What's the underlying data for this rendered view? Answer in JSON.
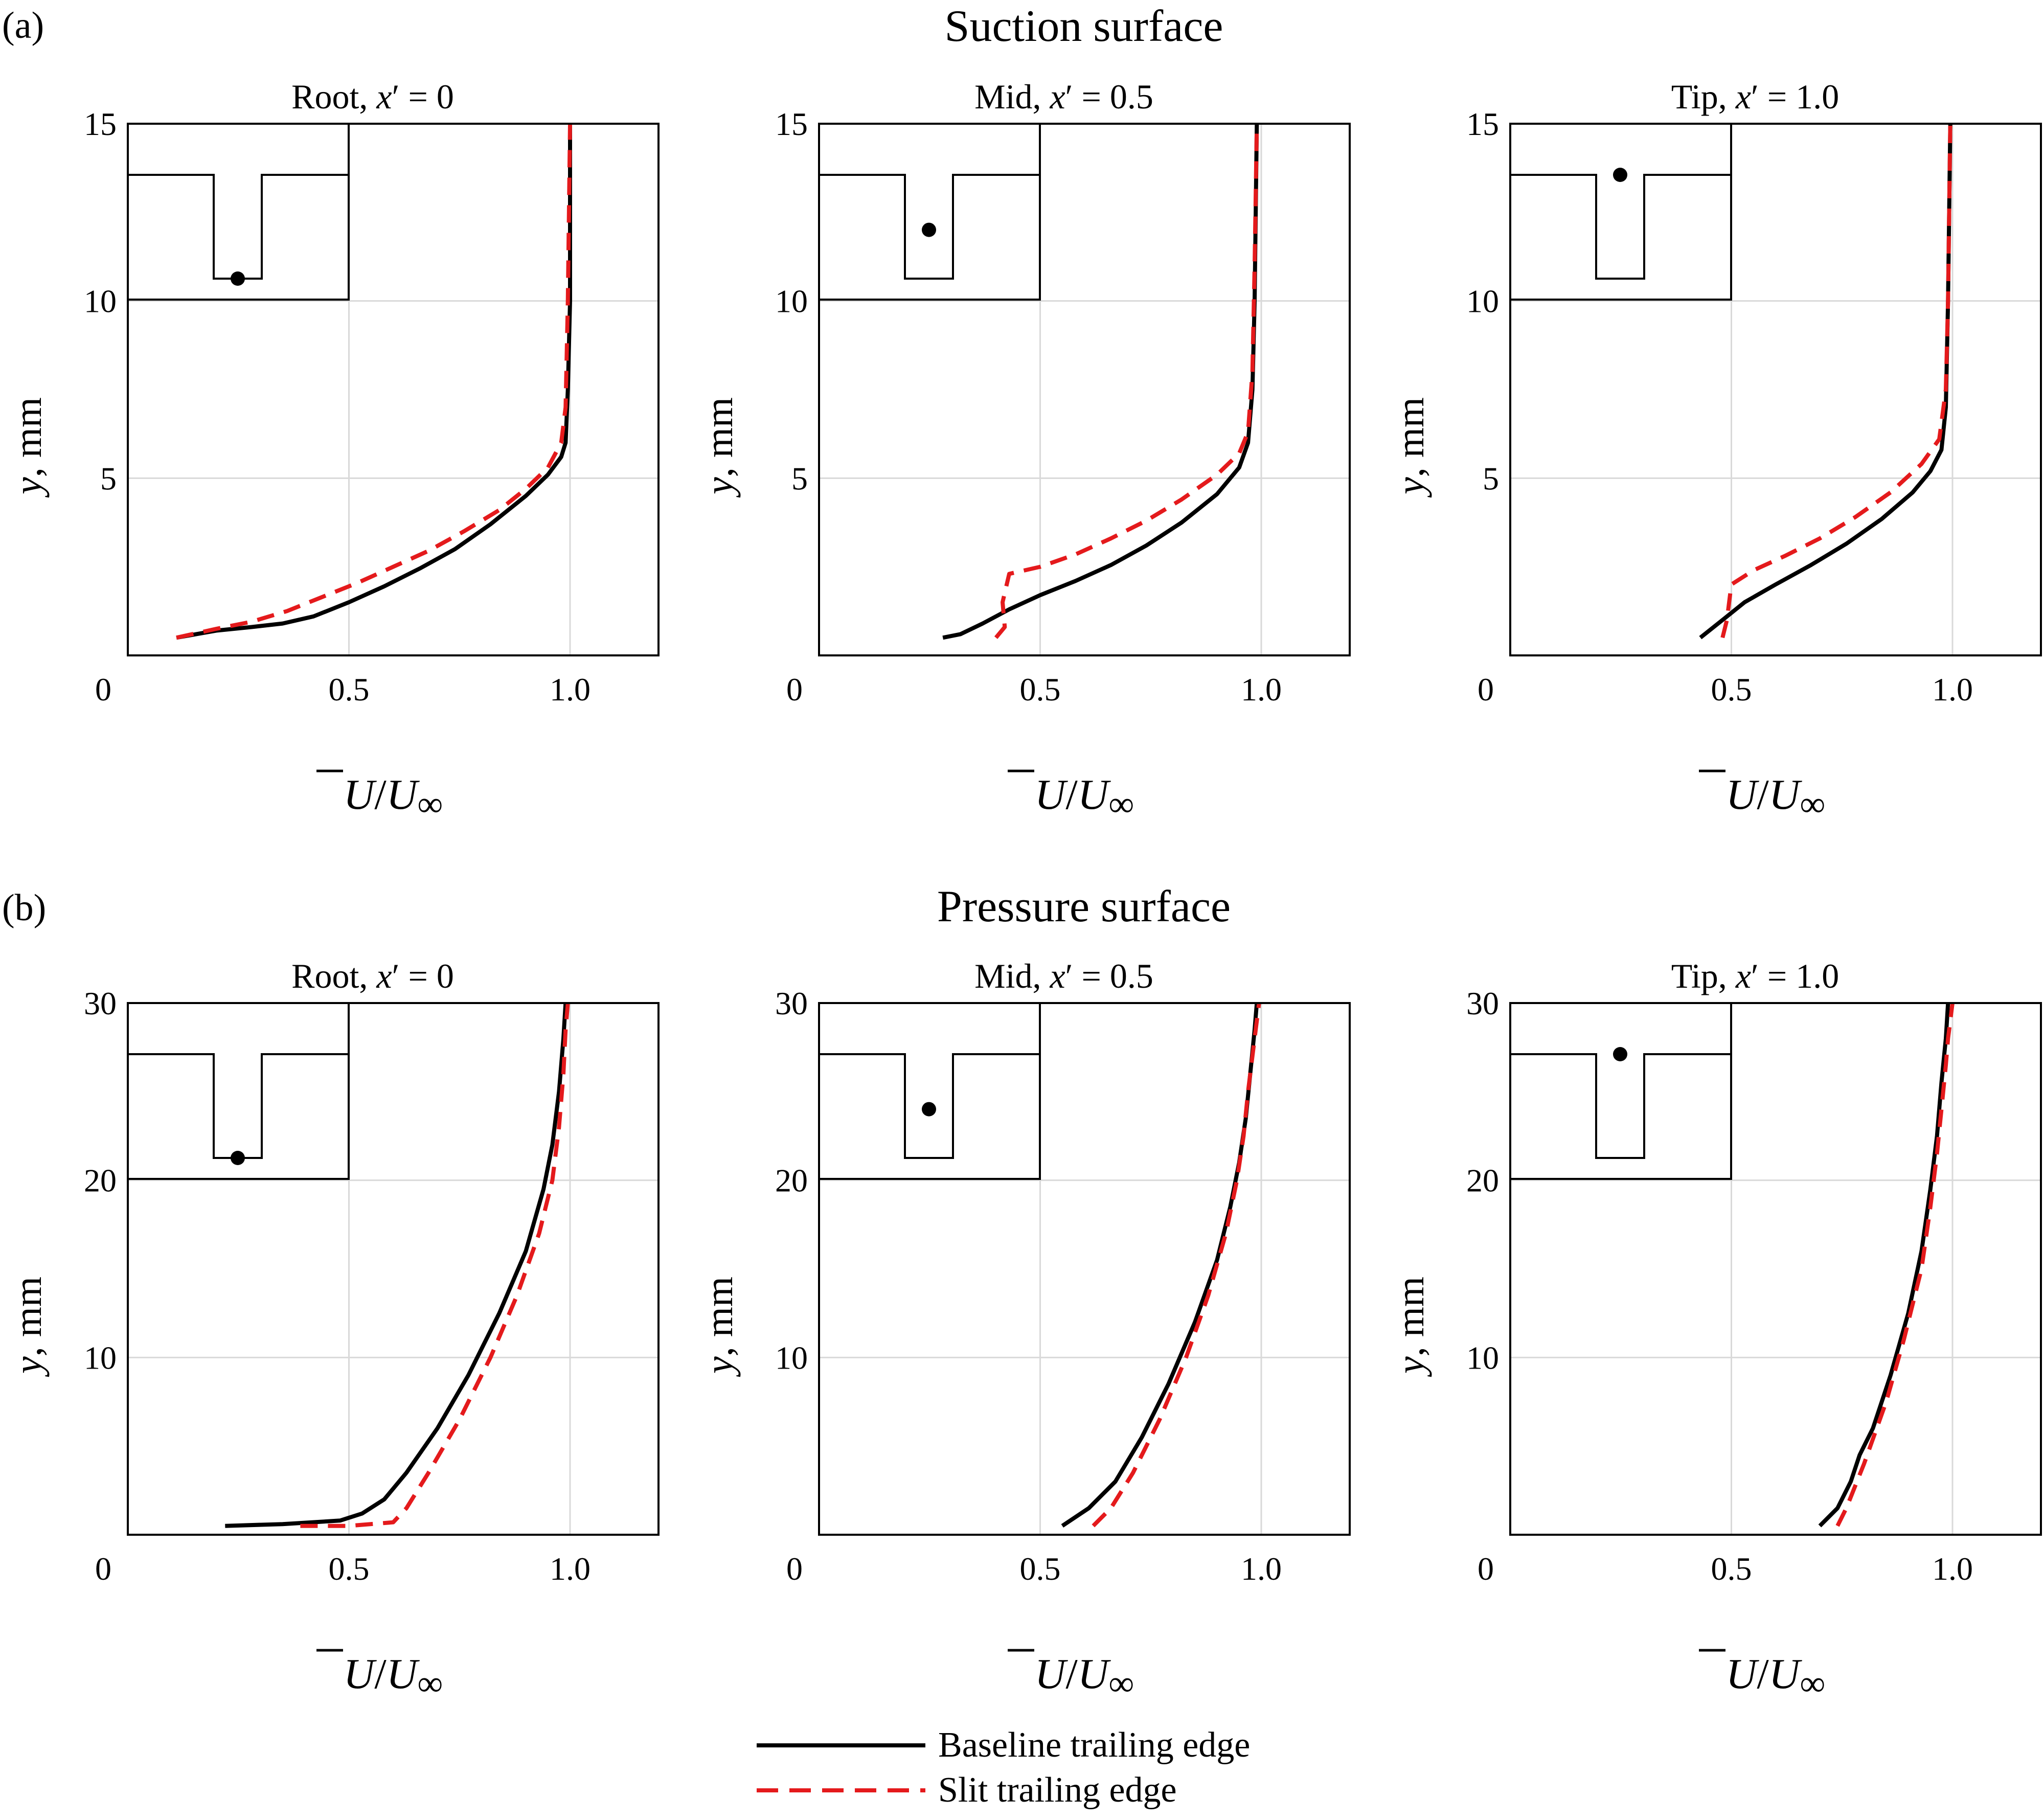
{
  "panels": {
    "a": {
      "letter": "(a)",
      "title": "Suction surface"
    },
    "b": {
      "letter": "(b)",
      "title": "Pressure surface"
    }
  },
  "axis_labels": {
    "y": "y, mm",
    "x": "Ū/U∞"
  },
  "legend": {
    "baseline": "Baseline trailing edge",
    "slit": "Slit trailing edge"
  },
  "colors": {
    "baseline": "#000000",
    "slit": "#e41a1c",
    "grid": "#d9d9d9"
  },
  "chart_data": [
    {
      "type": "line",
      "panel": "a",
      "title": "Root, x′ = 0",
      "inset_probe": "root",
      "xlim": [
        0,
        1.2
      ],
      "ylim": [
        0,
        15
      ],
      "xticks": [
        "0",
        "0.5",
        "1.0"
      ],
      "yticks": [
        "5",
        "10",
        "15"
      ],
      "grid": true,
      "series": [
        {
          "name": "Baseline trailing edge",
          "style": "solid",
          "x": [
            0.11,
            0.2,
            0.28,
            0.35,
            0.42,
            0.5,
            0.58,
            0.66,
            0.74,
            0.82,
            0.9,
            0.95,
            0.98,
            0.99,
            0.995,
            1.0,
            1.0
          ],
          "y": [
            0.5,
            0.7,
            0.8,
            0.9,
            1.1,
            1.5,
            1.95,
            2.45,
            3.0,
            3.7,
            4.5,
            5.1,
            5.6,
            6.0,
            7.5,
            10.0,
            15.0
          ]
        },
        {
          "name": "Slit trailing edge",
          "style": "dashed",
          "x": [
            0.11,
            0.2,
            0.28,
            0.36,
            0.44,
            0.52,
            0.6,
            0.68,
            0.76,
            0.84,
            0.9,
            0.95,
            0.98,
            0.99,
            0.995,
            1.0
          ],
          "y": [
            0.5,
            0.75,
            0.95,
            1.25,
            1.65,
            2.05,
            2.5,
            2.95,
            3.5,
            4.1,
            4.7,
            5.3,
            6.0,
            7.0,
            10.0,
            15.0
          ]
        }
      ]
    },
    {
      "type": "line",
      "panel": "a",
      "title": "Mid, x′ = 0.5",
      "inset_probe": "mid",
      "xlim": [
        0,
        1.2
      ],
      "ylim": [
        0,
        15
      ],
      "xticks": [
        "0",
        "0.5",
        "1.0"
      ],
      "yticks": [
        "5",
        "10",
        "15"
      ],
      "grid": true,
      "series": [
        {
          "name": "Baseline trailing edge",
          "style": "solid",
          "x": [
            0.28,
            0.32,
            0.37,
            0.43,
            0.5,
            0.58,
            0.66,
            0.74,
            0.82,
            0.9,
            0.95,
            0.97,
            0.98,
            0.985,
            0.99
          ],
          "y": [
            0.5,
            0.6,
            0.9,
            1.3,
            1.7,
            2.1,
            2.55,
            3.1,
            3.75,
            4.55,
            5.3,
            6.0,
            7.5,
            10.0,
            15.0
          ]
        },
        {
          "name": "Slit trailing edge",
          "style": "dashed",
          "x": [
            0.4,
            0.42,
            0.415,
            0.43,
            0.5,
            0.58,
            0.66,
            0.74,
            0.82,
            0.9,
            0.95,
            0.97,
            0.98,
            0.985,
            0.99
          ],
          "y": [
            0.5,
            0.8,
            1.5,
            2.3,
            2.5,
            2.85,
            3.3,
            3.8,
            4.4,
            5.1,
            5.7,
            6.3,
            8.0,
            11.0,
            15.0
          ]
        }
      ]
    },
    {
      "type": "line",
      "panel": "a",
      "title": "Tip, x′ = 1.0",
      "inset_probe": "tip",
      "xlim": [
        0,
        1.2
      ],
      "ylim": [
        0,
        15
      ],
      "xticks": [
        "0",
        "0.5",
        "1.0"
      ],
      "yticks": [
        "5",
        "10",
        "15"
      ],
      "grid": true,
      "series": [
        {
          "name": "Baseline trailing edge",
          "style": "solid",
          "x": [
            0.43,
            0.48,
            0.53,
            0.6,
            0.68,
            0.76,
            0.84,
            0.91,
            0.95,
            0.975,
            0.985,
            0.99,
            0.995
          ],
          "y": [
            0.5,
            1.0,
            1.5,
            2.0,
            2.55,
            3.15,
            3.85,
            4.6,
            5.2,
            5.8,
            7.0,
            10.0,
            15.0
          ]
        },
        {
          "name": "Slit trailing edge",
          "style": "dashed",
          "x": [
            0.48,
            0.49,
            0.5,
            0.55,
            0.62,
            0.7,
            0.78,
            0.86,
            0.93,
            0.97,
            0.985,
            0.99,
            0.995
          ],
          "y": [
            0.5,
            1.0,
            2.0,
            2.4,
            2.8,
            3.3,
            3.9,
            4.6,
            5.4,
            6.1,
            7.5,
            10.0,
            15.0
          ]
        }
      ]
    },
    {
      "type": "line",
      "panel": "b",
      "title": "Root, x′ = 0",
      "inset_probe": "root",
      "xlim": [
        0,
        1.2
      ],
      "ylim": [
        0,
        30
      ],
      "xticks": [
        "0",
        "0.5",
        "1.0"
      ],
      "yticks": [
        "10",
        "20",
        "30"
      ],
      "grid": true,
      "series": [
        {
          "name": "Baseline trailing edge",
          "style": "solid",
          "x": [
            0.22,
            0.35,
            0.48,
            0.53,
            0.58,
            0.63,
            0.7,
            0.77,
            0.84,
            0.9,
            0.94,
            0.96,
            0.975,
            0.985,
            0.99
          ],
          "y": [
            0.5,
            0.6,
            0.8,
            1.2,
            2.0,
            3.5,
            6.0,
            9.0,
            12.5,
            16.0,
            19.5,
            22.0,
            25.0,
            28.0,
            30.0
          ]
        },
        {
          "name": "Slit trailing edge",
          "style": "dashed",
          "x": [
            0.39,
            0.5,
            0.6,
            0.63,
            0.68,
            0.75,
            0.82,
            0.88,
            0.93,
            0.96,
            0.975,
            0.985,
            0.99,
            0.995
          ],
          "y": [
            0.5,
            0.5,
            0.7,
            1.5,
            3.5,
            6.5,
            10.0,
            13.5,
            17.0,
            20.0,
            23.0,
            26.0,
            28.5,
            30.0
          ]
        }
      ]
    },
    {
      "type": "line",
      "panel": "b",
      "title": "Mid, x′ = 0.5",
      "inset_probe": "mid",
      "xlim": [
        0,
        1.2
      ],
      "ylim": [
        0,
        30
      ],
      "xticks": [
        "0",
        "0.5",
        "1.0"
      ],
      "yticks": [
        "10",
        "20",
        "30"
      ],
      "grid": true,
      "series": [
        {
          "name": "Baseline trailing edge",
          "style": "solid",
          "x": [
            0.55,
            0.61,
            0.67,
            0.73,
            0.79,
            0.85,
            0.9,
            0.93,
            0.95,
            0.965,
            0.975,
            0.985,
            0.99
          ],
          "y": [
            0.5,
            1.5,
            3.0,
            5.5,
            8.5,
            12.0,
            15.5,
            18.5,
            21.0,
            23.5,
            26.0,
            28.5,
            30.0
          ]
        },
        {
          "name": "Slit trailing edge",
          "style": "dashed",
          "x": [
            0.62,
            0.66,
            0.71,
            0.77,
            0.83,
            0.88,
            0.92,
            0.945,
            0.96,
            0.97,
            0.98,
            0.99,
            0.995
          ],
          "y": [
            0.5,
            1.5,
            3.5,
            6.5,
            10.0,
            13.5,
            17.0,
            20.0,
            22.5,
            25.0,
            27.0,
            29.0,
            30.0
          ]
        }
      ]
    },
    {
      "type": "line",
      "panel": "b",
      "title": "Tip, x′ = 1.0",
      "inset_probe": "tip",
      "xlim": [
        0,
        1.2
      ],
      "ylim": [
        0,
        30
      ],
      "xticks": [
        "0",
        "0.5",
        "1.0"
      ],
      "yticks": [
        "10",
        "20",
        "30"
      ],
      "grid": true,
      "series": [
        {
          "name": "Baseline trailing edge",
          "style": "solid",
          "x": [
            0.7,
            0.74,
            0.77,
            0.79,
            0.8,
            0.82,
            0.86,
            0.9,
            0.93,
            0.95,
            0.965,
            0.975,
            0.985,
            0.99
          ],
          "y": [
            0.5,
            1.5,
            3.0,
            4.5,
            5.0,
            6.0,
            9.0,
            12.5,
            16.0,
            19.5,
            22.5,
            25.5,
            28.0,
            30.0
          ]
        },
        {
          "name": "Slit trailing edge",
          "style": "dashed",
          "x": [
            0.74,
            0.76,
            0.8,
            0.85,
            0.89,
            0.93,
            0.95,
            0.965,
            0.975,
            0.985,
            0.99,
            0.995,
            1.0
          ],
          "y": [
            0.5,
            1.5,
            4.0,
            7.5,
            11.0,
            15.0,
            18.5,
            21.5,
            24.0,
            26.5,
            28.0,
            29.0,
            30.0
          ]
        }
      ]
    }
  ]
}
